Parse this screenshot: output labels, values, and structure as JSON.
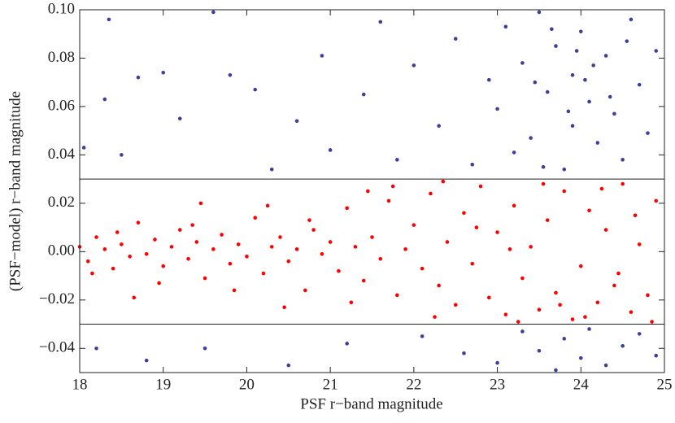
{
  "chart_data": {
    "type": "scatter",
    "x_label": "PSF r−band magnitude",
    "y_label": "(PSF−model) r−band magnitude",
    "xlim": [
      18,
      25
    ],
    "xticks": [
      18,
      19,
      20,
      21,
      22,
      23,
      24,
      25
    ],
    "ylim": [
      -0.05,
      0.1
    ],
    "yticks": [
      {
        "value": -0.04,
        "label": "−0.04"
      },
      {
        "value": -0.02,
        "label": "−0.02"
      },
      {
        "value": 0,
        "label": "0.00"
      },
      0.02,
      0.04,
      0.06,
      0.08,
      {
        "value": 0.1,
        "label": "0.10"
      }
    ],
    "reference_lines": [
      0.03,
      -0.03
    ],
    "series": [
      {
        "color": "#ff0000",
        "x": [
          18.0,
          18.1,
          18.2,
          18.3,
          18.4,
          18.5,
          18.6,
          18.7,
          18.8,
          18.9,
          19.0,
          19.1,
          19.2,
          19.3,
          19.4,
          19.5,
          19.6,
          19.7,
          19.8,
          19.9,
          20.0,
          20.1,
          20.2,
          20.3,
          20.4,
          20.5,
          20.6,
          20.7,
          20.8,
          20.9,
          21.0,
          21.1,
          21.2,
          21.3,
          21.4,
          21.5,
          21.6,
          21.7,
          21.8,
          21.9,
          22.0,
          22.1,
          22.2,
          22.3,
          22.4,
          22.5,
          22.6,
          22.7,
          22.8,
          22.9,
          23.0,
          23.1,
          23.2,
          23.3,
          23.4,
          23.5,
          23.6,
          23.7,
          23.8,
          23.9,
          24.0,
          24.1,
          24.2,
          24.3,
          24.4,
          24.5,
          24.6,
          24.7,
          24.8,
          24.9,
          18.15,
          18.45,
          18.95,
          19.35,
          19.85,
          20.25,
          20.75,
          21.25,
          21.75,
          22.25,
          22.75,
          23.25,
          23.55,
          23.75,
          24.05,
          24.25,
          24.45,
          24.65,
          24.85,
          23.15,
          22.35,
          21.45,
          20.45,
          19.45,
          18.65
        ],
        "values": [
          0.002,
          -0.004,
          0.006,
          0.001,
          -0.007,
          0.003,
          -0.002,
          0.012,
          -0.001,
          0.005,
          -0.006,
          0.002,
          0.009,
          -0.003,
          0.004,
          -0.011,
          0.001,
          0.007,
          -0.005,
          0.003,
          -0.002,
          0.014,
          -0.009,
          0.002,
          0.006,
          -0.004,
          0.001,
          -0.016,
          0.009,
          -0.001,
          0.004,
          -0.008,
          0.018,
          0.002,
          -0.012,
          0.006,
          -0.003,
          0.021,
          -0.018,
          0.001,
          0.011,
          -0.007,
          0.024,
          -0.014,
          0.004,
          -0.022,
          0.016,
          -0.005,
          0.027,
          -0.019,
          0.008,
          -0.026,
          0.019,
          -0.011,
          0.002,
          -0.024,
          0.013,
          -0.017,
          0.025,
          -0.028,
          -0.006,
          0.017,
          -0.021,
          0.009,
          -0.014,
          0.028,
          -0.025,
          0.003,
          -0.018,
          0.021,
          -0.009,
          0.008,
          -0.013,
          0.011,
          -0.016,
          0.019,
          0.013,
          -0.021,
          0.027,
          -0.027,
          0.01,
          -0.029,
          0.028,
          -0.022,
          -0.027,
          0.026,
          -0.009,
          0.015,
          -0.029,
          0.001,
          0.029,
          0.025,
          -0.023,
          0.02,
          -0.019
        ]
      },
      {
        "color": "#3f3f9a",
        "x": [
          18.05,
          18.2,
          18.3,
          18.35,
          18.5,
          18.7,
          18.8,
          19.0,
          19.2,
          19.5,
          19.6,
          19.8,
          20.1,
          20.3,
          20.5,
          20.6,
          20.9,
          21.0,
          21.2,
          21.4,
          21.6,
          21.8,
          22.0,
          22.1,
          22.3,
          22.5,
          22.6,
          22.7,
          22.9,
          23.0,
          23.0,
          23.1,
          23.2,
          23.3,
          23.3,
          23.4,
          23.5,
          23.5,
          23.6,
          23.7,
          23.7,
          23.8,
          23.8,
          23.9,
          23.9,
          24.0,
          24.0,
          24.1,
          24.1,
          24.2,
          24.3,
          24.3,
          24.4,
          24.5,
          24.5,
          24.6,
          24.7,
          24.7,
          24.8,
          24.9,
          24.9,
          23.65,
          24.15,
          23.85,
          24.35,
          23.45,
          24.55,
          23.95,
          24.05,
          23.55
        ],
        "values": [
          0.043,
          -0.04,
          0.063,
          0.096,
          0.04,
          0.072,
          -0.045,
          0.074,
          0.055,
          -0.04,
          0.099,
          0.073,
          0.067,
          0.034,
          -0.047,
          0.054,
          0.081,
          0.042,
          -0.038,
          0.065,
          0.095,
          0.038,
          0.077,
          -0.035,
          0.052,
          0.088,
          -0.042,
          0.036,
          0.071,
          -0.046,
          0.059,
          0.093,
          0.041,
          -0.033,
          0.078,
          0.047,
          -0.041,
          0.099,
          0.066,
          -0.049,
          0.085,
          0.034,
          -0.036,
          0.073,
          0.052,
          -0.044,
          0.091,
          0.062,
          -0.032,
          0.045,
          0.081,
          -0.047,
          0.057,
          0.038,
          -0.039,
          0.096,
          0.069,
          -0.034,
          0.049,
          0.083,
          -0.043,
          0.092,
          0.077,
          0.058,
          0.064,
          0.07,
          0.087,
          0.083,
          0.071,
          0.035
        ]
      }
    ]
  }
}
